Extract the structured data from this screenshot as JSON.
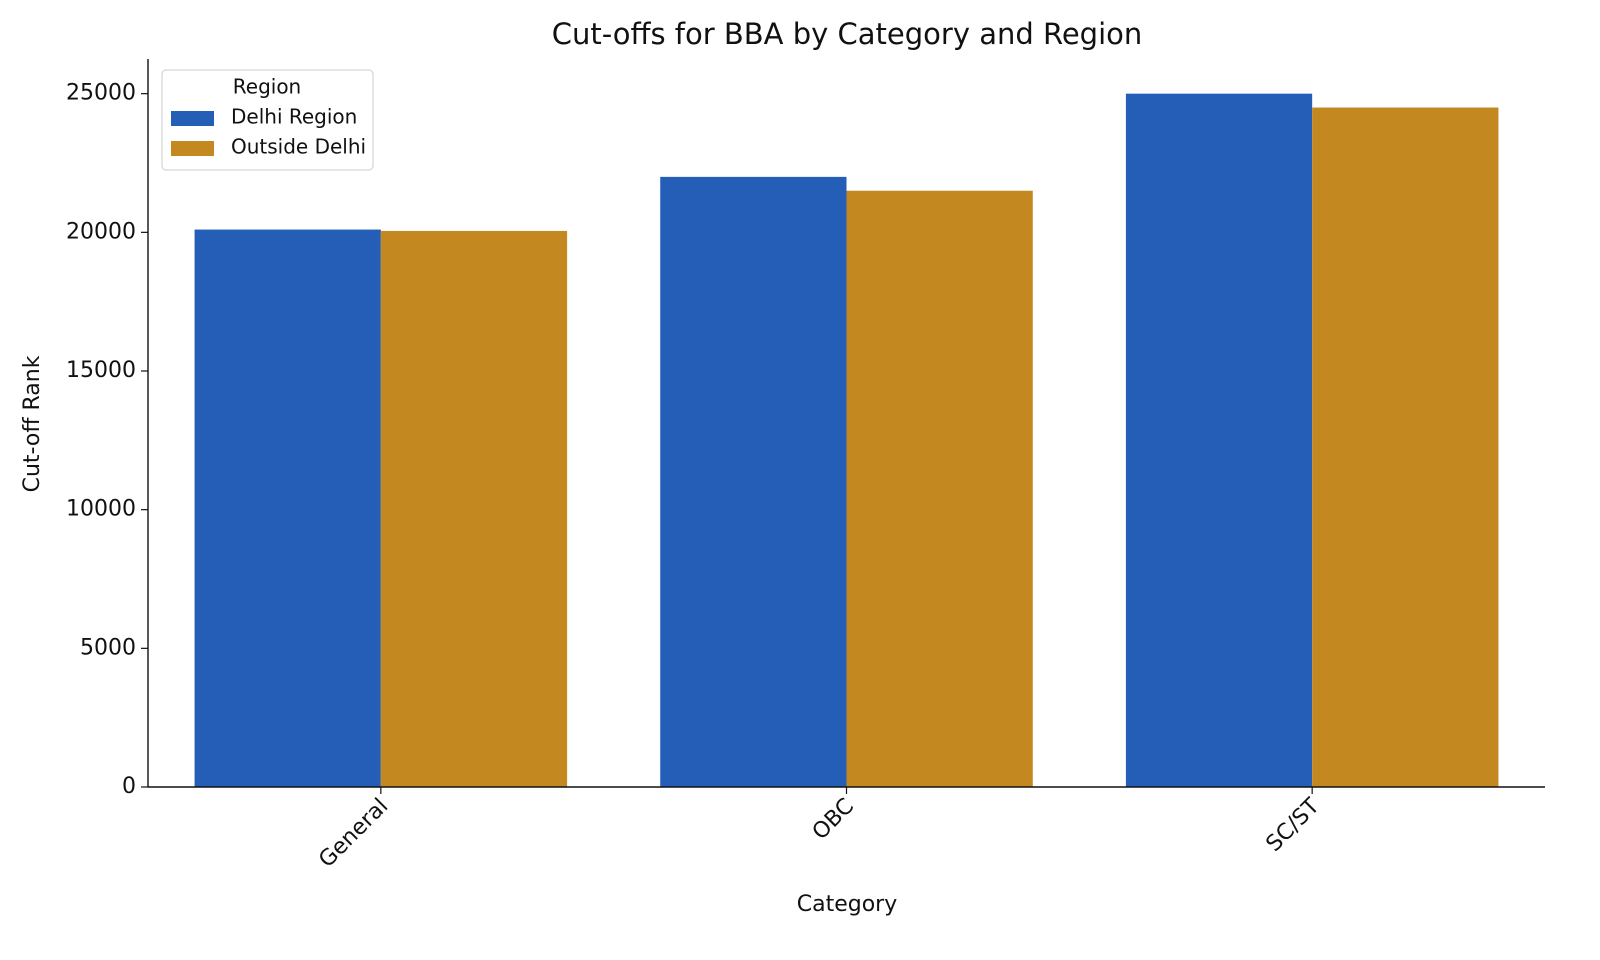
{
  "chart_data": {
    "type": "bar",
    "title": "Cut-offs for BBA by Category and Region",
    "x_label": "Category",
    "y_label": "Cut-off Rank",
    "categories": [
      "General",
      "OBC",
      "SC/ST"
    ],
    "series": [
      {
        "name": "Delhi Region",
        "color": "#245eb7",
        "values": [
          20100,
          22000,
          25000
        ]
      },
      {
        "name": "Outside Delhi",
        "color": "#c38820",
        "values": [
          20050,
          21500,
          24500
        ]
      }
    ],
    "ylim": [
      0,
      26250
    ],
    "yticks": [
      0,
      5000,
      10000,
      15000,
      20000,
      25000
    ],
    "grid": false,
    "legend_title": "Region",
    "legend_position": "upper left"
  }
}
